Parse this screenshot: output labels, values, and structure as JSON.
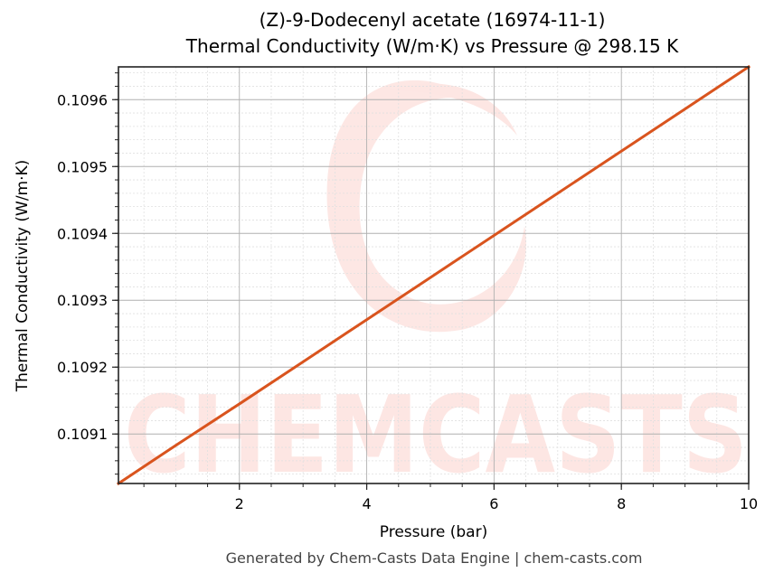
{
  "title": {
    "line1": "(Z)-9-Dodecenyl acetate (16974-11-1)",
    "line2": "Thermal Conductivity (W/m·K) vs Pressure @ 298.15 K"
  },
  "footer": "Generated by Chem-Casts Data Engine | chem-casts.com",
  "watermark": {
    "text": "CHEMCASTS",
    "color": "#fde6e3"
  },
  "colors": {
    "line": "#d9541e",
    "grid_major": "#b0b0b0",
    "grid_minor": "#e0e0e0",
    "spine": "#222222"
  },
  "chart_data": {
    "type": "line",
    "title": "(Z)-9-Dodecenyl acetate (16974-11-1) — Thermal Conductivity (W/m·K) vs Pressure @ 298.15 K",
    "xlabel": "Pressure (bar)",
    "ylabel": "Thermal Conductivity (W/m·K)",
    "xlim": [
      0.1,
      10
    ],
    "ylim": [
      0.109026,
      0.109649
    ],
    "xticks": [
      2,
      4,
      6,
      8,
      10
    ],
    "xtick_labels": [
      "2",
      "4",
      "6",
      "8",
      "10"
    ],
    "yticks": [
      0.1091,
      0.1092,
      0.1093,
      0.1094,
      0.1095,
      0.1096
    ],
    "ytick_labels": [
      "0.1091",
      "0.1092",
      "0.1093",
      "0.1094",
      "0.1095",
      "0.1096"
    ],
    "grid": true,
    "legend": null,
    "series": [
      {
        "name": "Thermal Conductivity",
        "x": [
          0.1,
          1,
          2,
          3,
          4,
          5,
          6,
          7,
          8,
          9,
          10
        ],
        "values": [
          0.109026,
          0.109083,
          0.109145,
          0.109208,
          0.109271,
          0.109334,
          0.109397,
          0.10946,
          0.109523,
          0.109586,
          0.109649
        ]
      }
    ]
  }
}
